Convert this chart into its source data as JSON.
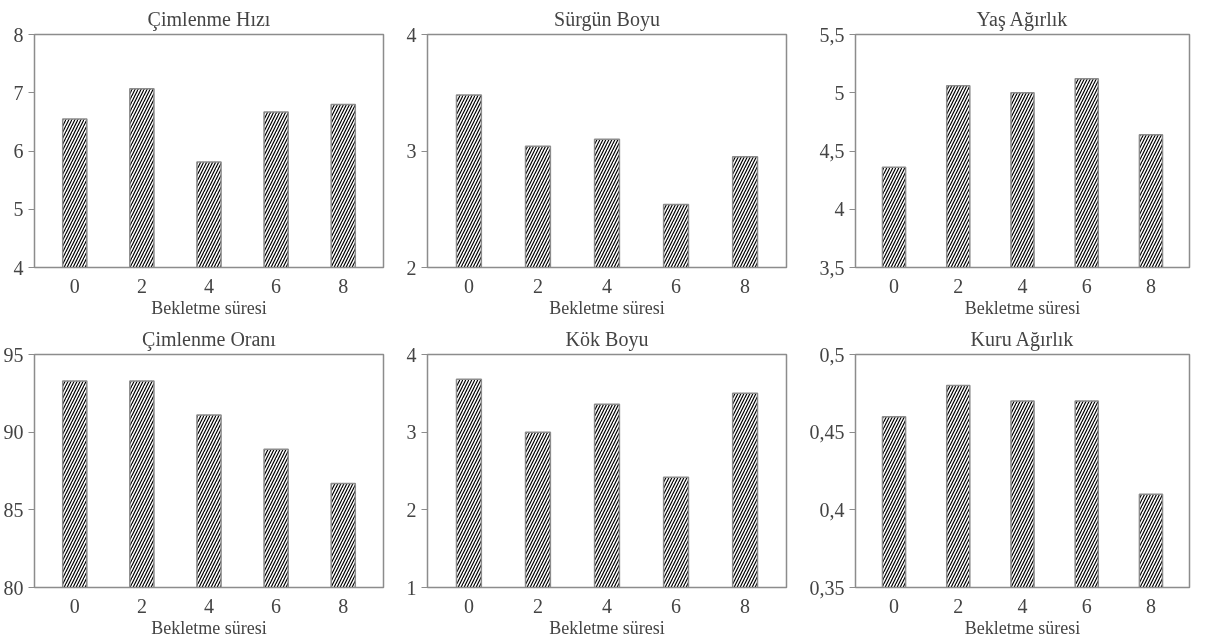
{
  "chart_data": [
    {
      "type": "bar",
      "title": "Çimlenme Hızı",
      "xlabel": "Bekletme süresi",
      "categories": [
        "0",
        "2",
        "4",
        "6",
        "8"
      ],
      "values": [
        6.55,
        7.07,
        5.81,
        6.67,
        6.8
      ],
      "color": "#ffffff",
      "ylim": [
        4,
        8
      ],
      "yticks": [
        4,
        5,
        6,
        7,
        8
      ],
      "grid": false
    },
    {
      "type": "bar",
      "title": "Sürgün Boyu",
      "xlabel": "Bekletme süresi",
      "categories": [
        "0",
        "2",
        "4",
        "6",
        "8"
      ],
      "values": [
        3.48,
        3.04,
        3.1,
        2.54,
        2.95
      ],
      "color": "#ffffff",
      "ylim": [
        2,
        4
      ],
      "yticks": [
        2,
        3,
        4
      ],
      "grid": false
    },
    {
      "type": "bar",
      "title": "Yaş Ağırlık",
      "xlabel": "Bekletme süresi",
      "categories": [
        "0",
        "2",
        "4",
        "6",
        "8"
      ],
      "values": [
        4.36,
        5.06,
        5.0,
        5.12,
        4.64
      ],
      "color": "#ffffff",
      "ylim": [
        3.5,
        5.5
      ],
      "yticks": [
        {
          "value": 3.5,
          "label": "3,5"
        },
        4,
        {
          "value": 4.5,
          "label": "4,5"
        },
        5,
        {
          "value": 5.5,
          "label": "5,5"
        }
      ],
      "grid": false
    },
    {
      "type": "bar",
      "title": "Çimlenme Oranı",
      "xlabel": "Bekletme süresi",
      "categories": [
        "0",
        "2",
        "4",
        "6",
        "8"
      ],
      "values": [
        93.3,
        93.3,
        91.1,
        88.9,
        86.7
      ],
      "color": "#ffffff",
      "ylim": [
        80,
        95
      ],
      "yticks": [
        80,
        85,
        90,
        95
      ],
      "grid": false
    },
    {
      "type": "bar",
      "title": "Kök Boyu",
      "xlabel": "Bekletme süresi",
      "categories": [
        "0",
        "2",
        "4",
        "6",
        "8"
      ],
      "values": [
        3.68,
        3.0,
        3.36,
        2.42,
        3.5
      ],
      "color": "#ffffff",
      "ylim": [
        1,
        4
      ],
      "yticks": [
        1,
        2,
        3,
        4
      ],
      "grid": false
    },
    {
      "type": "bar",
      "title": "Kuru Ağırlık",
      "xlabel": "Bekletme süresi",
      "categories": [
        "0",
        "2",
        "4",
        "6",
        "8"
      ],
      "values": [
        0.46,
        0.48,
        0.47,
        0.47,
        0.41
      ],
      "color": "#ffffff",
      "ylim": [
        0.35,
        0.5
      ],
      "yticks": [
        {
          "value": 0.35,
          "label": "0,35"
        },
        {
          "value": 0.4,
          "label": "0,4"
        },
        {
          "value": 0.45,
          "label": "0,45"
        },
        {
          "value": 0.5,
          "label": "0,5"
        }
      ],
      "grid": false
    }
  ]
}
